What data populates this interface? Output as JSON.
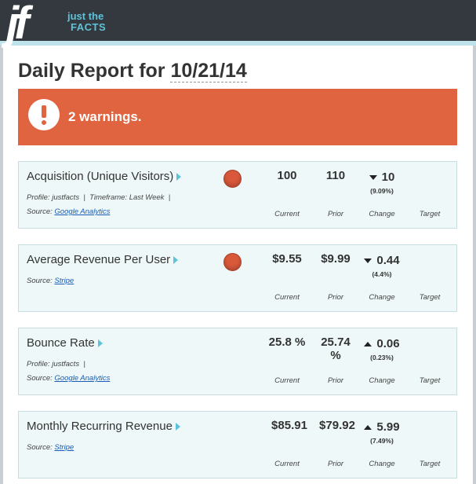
{
  "header": {
    "logo_mark": "jf",
    "logo_line1": "just the",
    "logo_line2": "FACTS"
  },
  "report": {
    "title_prefix": "Daily Report for",
    "date": "10/21/14"
  },
  "warning": {
    "text": "2 warnings.",
    "color": "#e0643f"
  },
  "column_labels": {
    "current": "Current",
    "prior": "Prior",
    "change": "Change",
    "target": "Target"
  },
  "metrics": [
    {
      "name": "Acquisition (Unique Visitors)",
      "profile_label": "Profile:",
      "profile_value": "justfacts",
      "timeframe_label": "Timeframe:",
      "timeframe_value": "Last Week",
      "source_label": "Source:",
      "source_value": "Google Analytics",
      "current": "100",
      "prior": "110",
      "change": "10",
      "change_direction": "down",
      "change_pct": "(9.09%)",
      "status": "warning"
    },
    {
      "name": "Average Revenue Per User",
      "source_label": "Source:",
      "source_value": "Stripe",
      "current": "$9.55",
      "prior": "$9.99",
      "change": "0.44",
      "change_direction": "down",
      "change_pct": "(4.4%)",
      "status": "warning"
    },
    {
      "name": "Bounce Rate",
      "profile_label": "Profile:",
      "profile_value": "justfacts",
      "source_label": "Source:",
      "source_value": "Google Analytics",
      "current": "25.8 %",
      "prior": "25.74 %",
      "change": "0.06",
      "change_direction": "up",
      "change_pct": "(0.23%)"
    },
    {
      "name": "Monthly Recurring Revenue",
      "source_label": "Source:",
      "source_value": "Stripe",
      "current": "$85.91",
      "prior": "$79.92",
      "change": "5.99",
      "change_direction": "up",
      "change_pct": "(7.49%)"
    }
  ]
}
